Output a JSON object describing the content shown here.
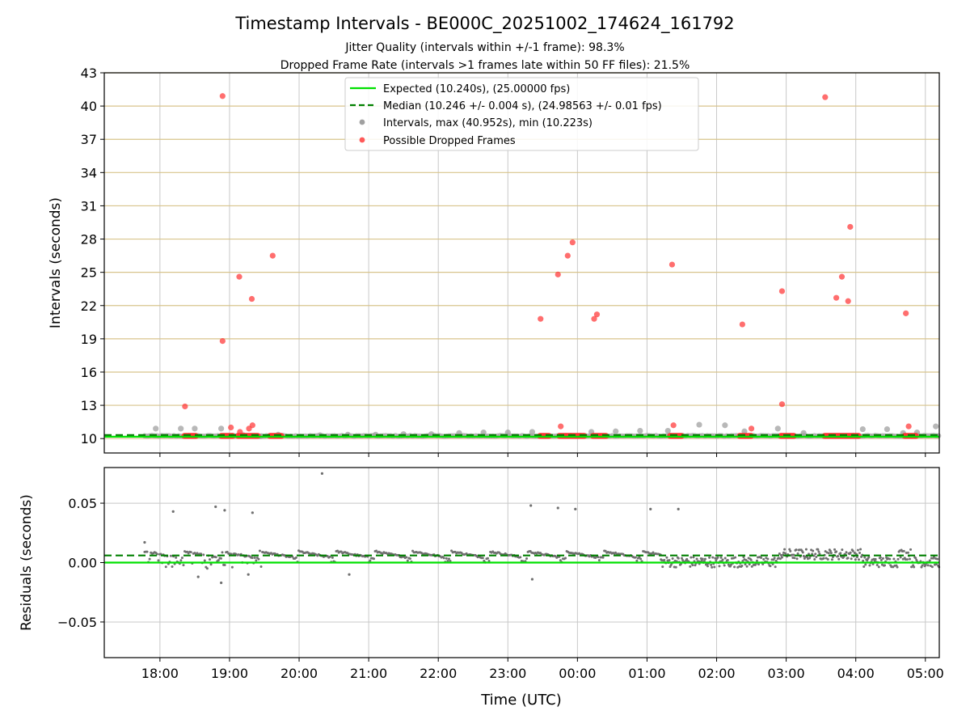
{
  "figure": {
    "title": "Timestamp Intervals - BE000C_20251002_174624_161792",
    "subtitle_1": "Jitter Quality (intervals within +/-1 frame): 98.3%",
    "subtitle_2": "Dropped Frame Rate (intervals >1 frames late within 50 FF files): 21.5%",
    "xlabel": "Time (UTC)"
  },
  "colors": {
    "expected": "#00e000",
    "median": "#008000",
    "interval": "#a0a0a0",
    "dropped": "#ff3030",
    "hgrid": "#d8c48c",
    "vgrid": "#c8c8c8",
    "residual": "#707070"
  },
  "chart_data": [
    {
      "type": "scatter",
      "name": "intervals",
      "ylabel": "Intervals (seconds)",
      "x_unit": "hours since 18:00 UTC (values > 6 wrap past midnight)",
      "xlim": [
        -0.8,
        11.2
      ],
      "ylim": [
        8.7,
        43
      ],
      "x_ticks": [
        0,
        1,
        2,
        3,
        4,
        5,
        6,
        7,
        8,
        9,
        10,
        11
      ],
      "x_tick_labels": [
        "18:00",
        "19:00",
        "20:00",
        "21:00",
        "22:00",
        "23:00",
        "00:00",
        "01:00",
        "02:00",
        "03:00",
        "04:00",
        "05:00"
      ],
      "y_ticks": [
        10,
        13,
        16,
        19,
        22,
        25,
        28,
        31,
        34,
        37,
        40,
        43
      ],
      "y_tick_labels": [
        "10",
        "13",
        "16",
        "19",
        "22",
        "25",
        "28",
        "31",
        "34",
        "37",
        "40",
        "43"
      ],
      "expected": 10.24,
      "median": 10.246,
      "legend": {
        "position": "top-center",
        "entries": [
          "Expected (10.240s), (25.00000 fps)",
          "Median (10.246 +/- 0.004 s), (24.98563 +/- 0.01 fps)",
          "Intervals, max (40.952s), min (10.223s)",
          "Possible Dropped Frames"
        ]
      },
      "intervals_baseline_range": [
        -0.22,
        11.2
      ],
      "intervals_gray": [
        {
          "x": -0.06,
          "y": 10.9
        },
        {
          "x": 0.3,
          "y": 10.9
        },
        {
          "x": 0.5,
          "y": 10.9
        },
        {
          "x": 0.88,
          "y": 10.9
        },
        {
          "x": 1.2,
          "y": 10.3
        },
        {
          "x": 1.45,
          "y": 10.2
        },
        {
          "x": 1.7,
          "y": 10.35
        },
        {
          "x": 2.3,
          "y": 10.3
        },
        {
          "x": 2.7,
          "y": 10.35
        },
        {
          "x": 3.1,
          "y": 10.35
        },
        {
          "x": 3.5,
          "y": 10.4
        },
        {
          "x": 3.9,
          "y": 10.4
        },
        {
          "x": 4.3,
          "y": 10.5
        },
        {
          "x": 4.65,
          "y": 10.55
        },
        {
          "x": 5.0,
          "y": 10.55
        },
        {
          "x": 5.35,
          "y": 10.6
        },
        {
          "x": 6.2,
          "y": 10.6
        },
        {
          "x": 6.55,
          "y": 10.65
        },
        {
          "x": 6.9,
          "y": 10.7
        },
        {
          "x": 7.3,
          "y": 10.7
        },
        {
          "x": 7.75,
          "y": 11.25
        },
        {
          "x": 8.12,
          "y": 11.2
        },
        {
          "x": 8.4,
          "y": 10.65
        },
        {
          "x": 8.88,
          "y": 10.9
        },
        {
          "x": 9.25,
          "y": 10.5
        },
        {
          "x": 10.1,
          "y": 10.85
        },
        {
          "x": 10.45,
          "y": 10.85
        },
        {
          "x": 10.68,
          "y": 10.5
        },
        {
          "x": 10.88,
          "y": 10.55
        },
        {
          "x": 11.15,
          "y": 11.1
        }
      ],
      "dropped_frames_outliers": [
        {
          "x": 0.36,
          "y": 12.9
        },
        {
          "x": 0.9,
          "y": 40.9
        },
        {
          "x": 0.9,
          "y": 18.8
        },
        {
          "x": 1.02,
          "y": 11.0
        },
        {
          "x": 1.14,
          "y": 24.6
        },
        {
          "x": 1.15,
          "y": 10.6
        },
        {
          "x": 1.28,
          "y": 10.9
        },
        {
          "x": 1.32,
          "y": 22.6
        },
        {
          "x": 1.33,
          "y": 11.2
        },
        {
          "x": 1.62,
          "y": 26.5
        },
        {
          "x": 5.47,
          "y": 20.8
        },
        {
          "x": 5.72,
          "y": 24.8
        },
        {
          "x": 5.76,
          "y": 11.1
        },
        {
          "x": 5.86,
          "y": 26.5
        },
        {
          "x": 5.93,
          "y": 27.7
        },
        {
          "x": 6.24,
          "y": 20.8
        },
        {
          "x": 6.28,
          "y": 21.2
        },
        {
          "x": 7.36,
          "y": 25.7
        },
        {
          "x": 7.38,
          "y": 11.2
        },
        {
          "x": 8.37,
          "y": 20.3
        },
        {
          "x": 8.5,
          "y": 10.9
        },
        {
          "x": 8.94,
          "y": 13.1
        },
        {
          "x": 8.94,
          "y": 23.3
        },
        {
          "x": 9.56,
          "y": 40.8
        },
        {
          "x": 9.72,
          "y": 22.7
        },
        {
          "x": 9.8,
          "y": 24.6
        },
        {
          "x": 9.89,
          "y": 22.4
        },
        {
          "x": 9.92,
          "y": 29.1
        },
        {
          "x": 10.72,
          "y": 21.3
        },
        {
          "x": 10.76,
          "y": 11.1
        }
      ],
      "dropped_frames_clusters": [
        {
          "x_start": 0.35,
          "x_end": 0.52,
          "y": 10.24
        },
        {
          "x_start": 0.88,
          "x_end": 1.05,
          "y": 10.24
        },
        {
          "x_start": 1.12,
          "x_end": 1.42,
          "y": 10.24
        },
        {
          "x_start": 1.58,
          "x_end": 1.75,
          "y": 10.24
        },
        {
          "x_start": 5.46,
          "x_end": 5.6,
          "y": 10.24
        },
        {
          "x_start": 5.74,
          "x_end": 6.1,
          "y": 10.24
        },
        {
          "x_start": 6.22,
          "x_end": 6.42,
          "y": 10.24
        },
        {
          "x_start": 7.33,
          "x_end": 7.5,
          "y": 10.24
        },
        {
          "x_start": 8.33,
          "x_end": 8.5,
          "y": 10.24
        },
        {
          "x_start": 8.92,
          "x_end": 9.12,
          "y": 10.24
        },
        {
          "x_start": 9.55,
          "x_end": 10.05,
          "y": 10.24
        },
        {
          "x_start": 10.7,
          "x_end": 10.88,
          "y": 10.24
        }
      ]
    },
    {
      "type": "scatter",
      "name": "residuals",
      "ylabel": "Residuals (seconds)",
      "xlim": [
        -0.8,
        11.2
      ],
      "ylim": [
        -0.08,
        0.08
      ],
      "y_ticks": [
        -0.05,
        0.0,
        0.05
      ],
      "y_tick_labels": [
        "−0.05",
        "0.00",
        "0.05"
      ],
      "expected": 0.0,
      "median": 0.006,
      "outliers": [
        {
          "x": -0.22,
          "y": 0.017
        },
        {
          "x": 0.19,
          "y": 0.043
        },
        {
          "x": 0.8,
          "y": 0.047
        },
        {
          "x": 0.93,
          "y": 0.044
        },
        {
          "x": 1.33,
          "y": 0.042
        },
        {
          "x": 2.33,
          "y": 0.075
        },
        {
          "x": 5.33,
          "y": 0.048
        },
        {
          "x": 5.72,
          "y": 0.046
        },
        {
          "x": 5.97,
          "y": 0.045
        },
        {
          "x": 7.05,
          "y": 0.045
        },
        {
          "x": 7.45,
          "y": 0.045
        },
        {
          "x": 0.88,
          "y": -0.017
        },
        {
          "x": 5.35,
          "y": -0.014
        },
        {
          "x": 0.55,
          "y": -0.012
        },
        {
          "x": 1.27,
          "y": -0.01
        },
        {
          "x": 2.72,
          "y": -0.01
        }
      ],
      "segments_note": "dense near-median band from 18:00 to 01:10 with saw-tooth drift; noisy scatter around 0 to 0.012 after 01:10"
    }
  ]
}
